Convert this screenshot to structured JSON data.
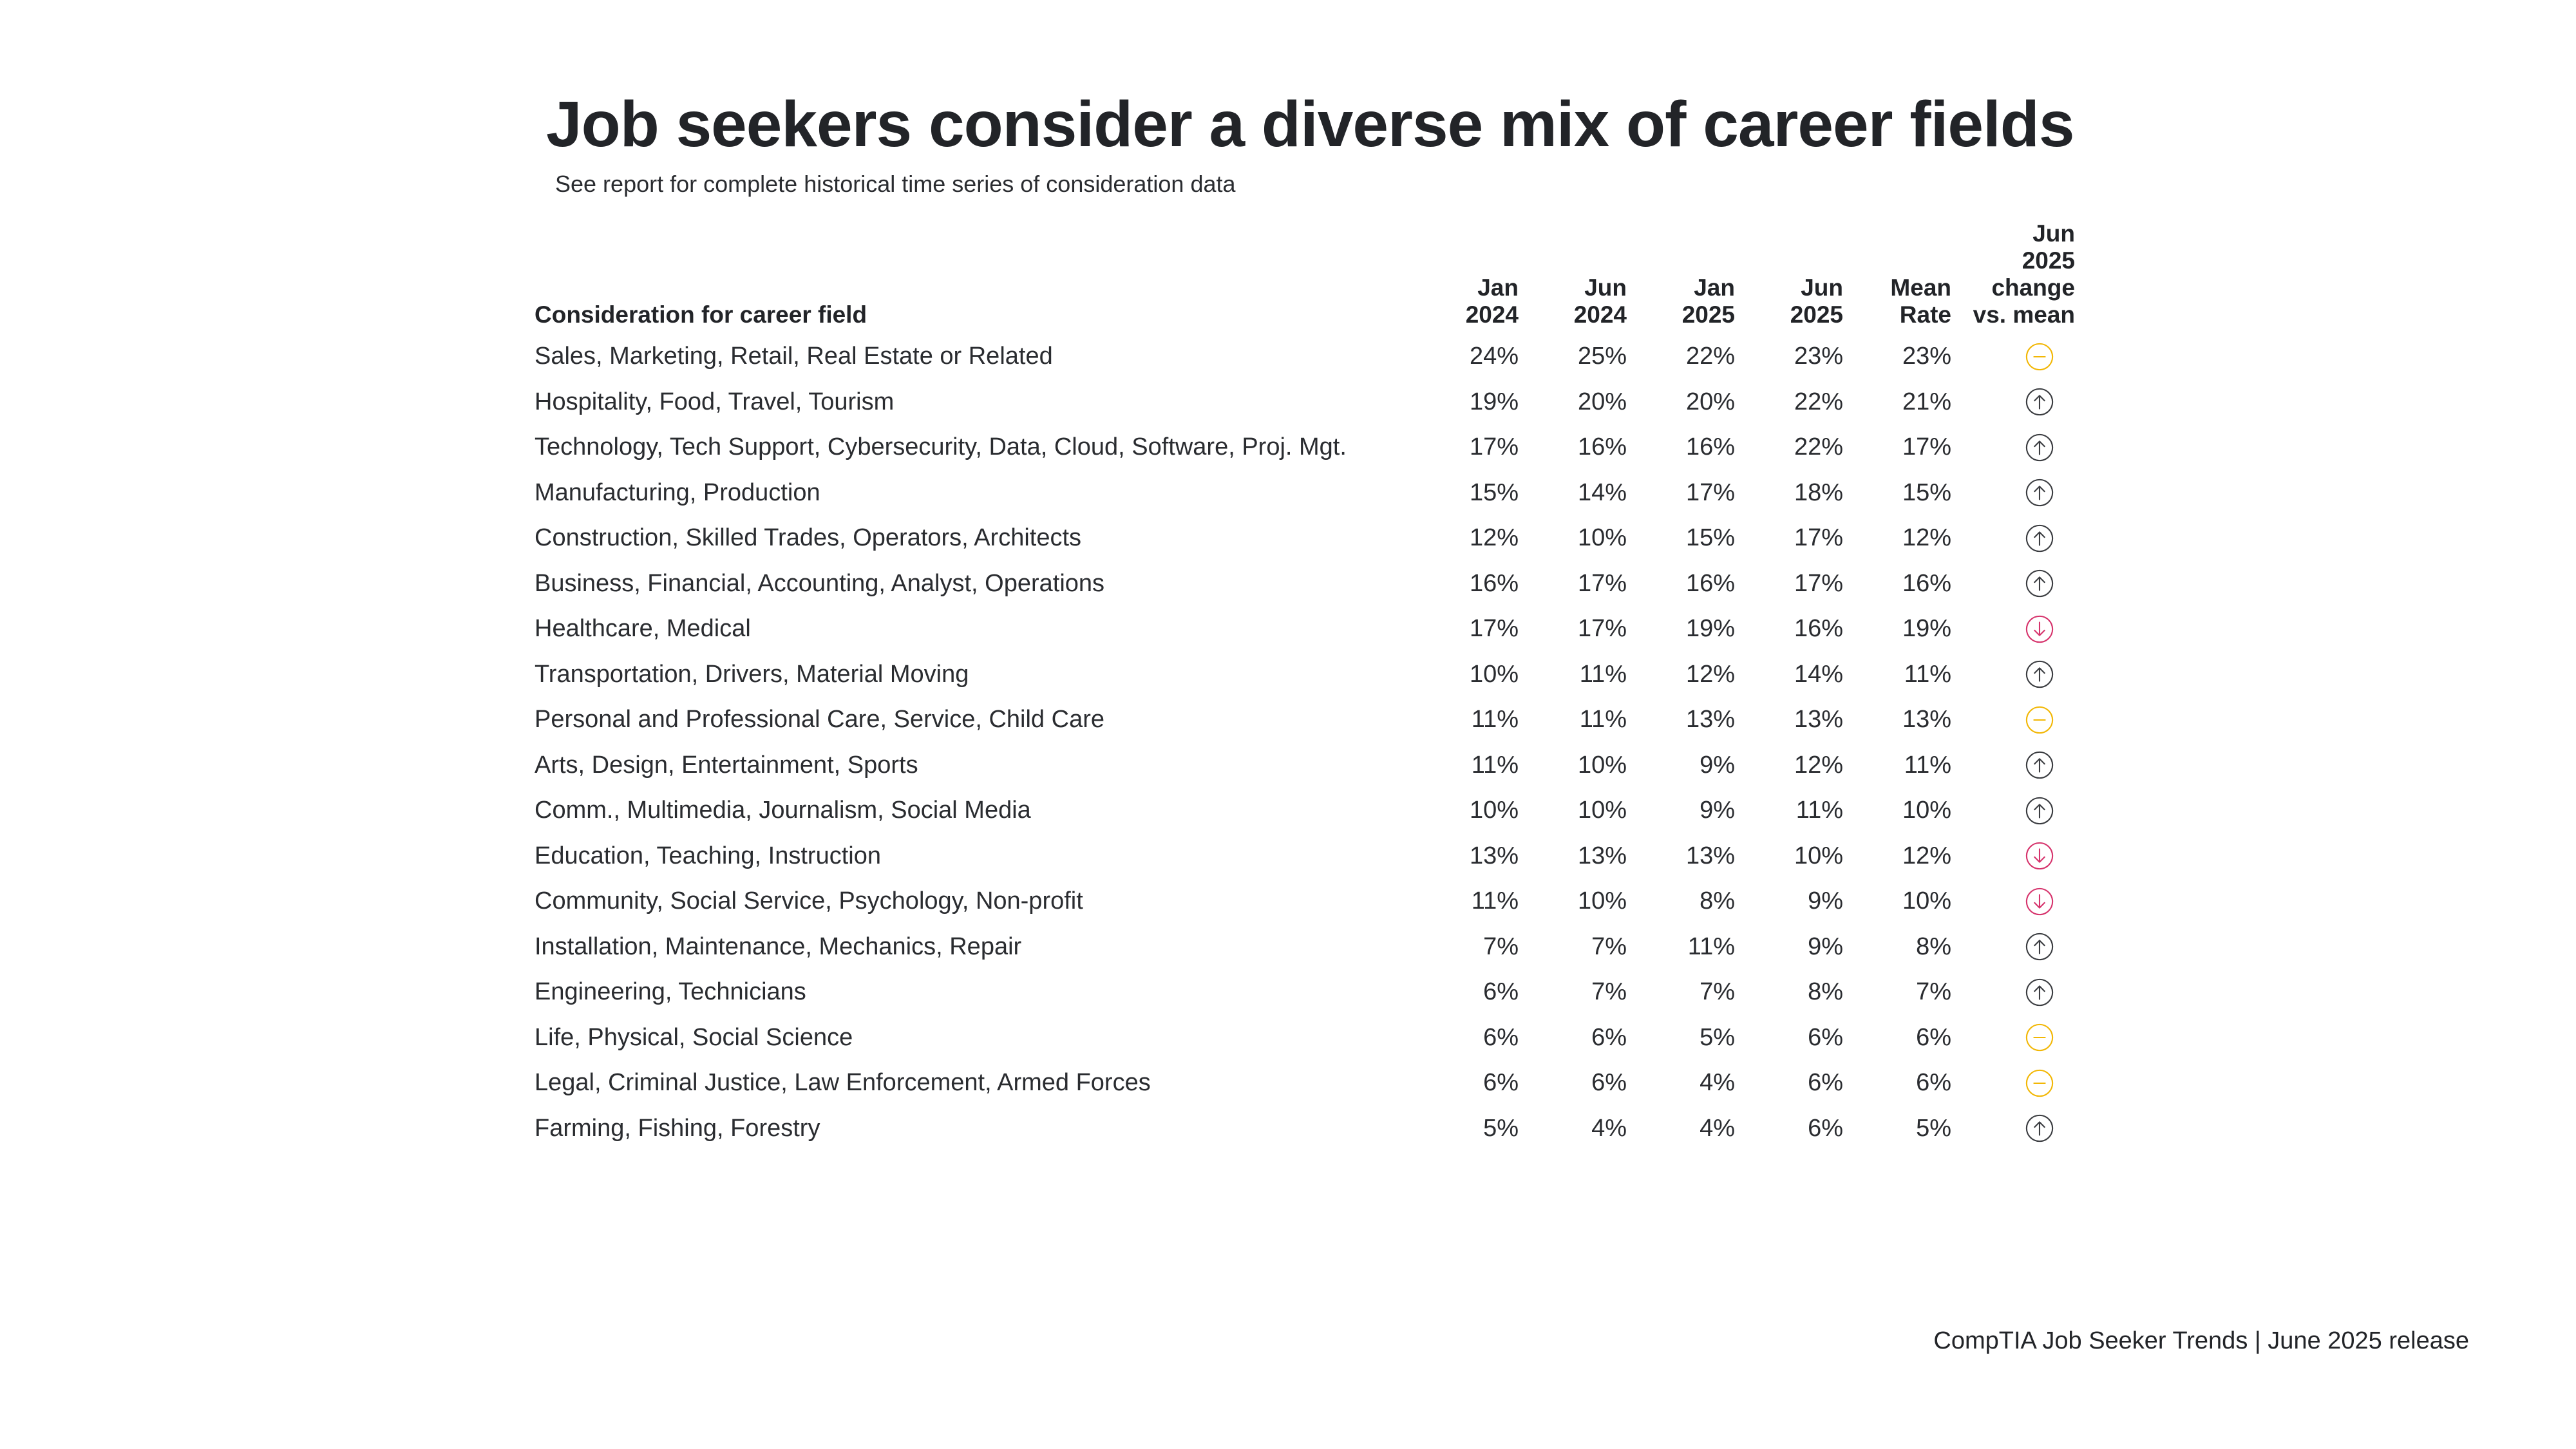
{
  "title": "Job seekers consider a diverse mix of career fields",
  "subtitle": "See report for complete historical time series of consideration data",
  "table": {
    "name_header": "Consideration for career field",
    "columns": [
      {
        "line1": "Jan",
        "line2": "2024"
      },
      {
        "line1": "Jun",
        "line2": "2024"
      },
      {
        "line1": "Jan",
        "line2": "2025"
      },
      {
        "line1": "Jun",
        "line2": "2025"
      },
      {
        "line1": "Mean",
        "line2": "Rate"
      }
    ],
    "change_header": [
      "Jun",
      "2025",
      "change",
      "vs. mean"
    ],
    "rows": [
      {
        "name": "Sales, Marketing, Retail, Real Estate or Related",
        "values": [
          "24%",
          "25%",
          "22%",
          "23%",
          "23%"
        ],
        "trend": "flat"
      },
      {
        "name": "Hospitality, Food, Travel, Tourism",
        "values": [
          "19%",
          "20%",
          "20%",
          "22%",
          "21%"
        ],
        "trend": "up"
      },
      {
        "name": "Technology, Tech Support, Cybersecurity, Data, Cloud, Software, Proj. Mgt.",
        "values": [
          "17%",
          "16%",
          "16%",
          "22%",
          "17%"
        ],
        "trend": "up"
      },
      {
        "name": "Manufacturing, Production",
        "values": [
          "15%",
          "14%",
          "17%",
          "18%",
          "15%"
        ],
        "trend": "up"
      },
      {
        "name": "Construction, Skilled Trades, Operators, Architects",
        "values": [
          "12%",
          "10%",
          "15%",
          "17%",
          "12%"
        ],
        "trend": "up"
      },
      {
        "name": "Business, Financial, Accounting, Analyst, Operations",
        "values": [
          "16%",
          "17%",
          "16%",
          "17%",
          "16%"
        ],
        "trend": "up"
      },
      {
        "name": "Healthcare, Medical",
        "values": [
          "17%",
          "17%",
          "19%",
          "16%",
          "19%"
        ],
        "trend": "down"
      },
      {
        "name": "Transportation, Drivers, Material Moving",
        "values": [
          "10%",
          "11%",
          "12%",
          "14%",
          "11%"
        ],
        "trend": "up"
      },
      {
        "name": "Personal and Professional Care, Service, Child Care",
        "values": [
          "11%",
          "11%",
          "13%",
          "13%",
          "13%"
        ],
        "trend": "flat"
      },
      {
        "name": "Arts, Design, Entertainment, Sports",
        "values": [
          "11%",
          "10%",
          "9%",
          "12%",
          "11%"
        ],
        "trend": "up"
      },
      {
        "name": "Comm., Multimedia, Journalism, Social Media",
        "values": [
          "10%",
          "10%",
          "9%",
          "11%",
          "10%"
        ],
        "trend": "up"
      },
      {
        "name": "Education, Teaching, Instruction",
        "values": [
          "13%",
          "13%",
          "13%",
          "10%",
          "12%"
        ],
        "trend": "down"
      },
      {
        "name": "Community, Social Service, Psychology, Non-profit",
        "values": [
          "11%",
          "10%",
          "8%",
          "9%",
          "10%"
        ],
        "trend": "down"
      },
      {
        "name": "Installation, Maintenance, Mechanics, Repair",
        "values": [
          "7%",
          "7%",
          "11%",
          "9%",
          "8%"
        ],
        "trend": "up"
      },
      {
        "name": "Engineering, Technicians",
        "values": [
          "6%",
          "7%",
          "7%",
          "8%",
          "7%"
        ],
        "trend": "up"
      },
      {
        "name": "Life, Physical, Social Science",
        "values": [
          "6%",
          "6%",
          "5%",
          "6%",
          "6%"
        ],
        "trend": "flat"
      },
      {
        "name": "Legal, Criminal Justice, Law Enforcement, Armed Forces",
        "values": [
          "6%",
          "6%",
          "4%",
          "6%",
          "6%"
        ],
        "trend": "flat"
      },
      {
        "name": "Farming, Fishing, Forestry",
        "values": [
          "5%",
          "4%",
          "4%",
          "6%",
          "5%"
        ],
        "trend": "up"
      }
    ]
  },
  "trend_icons": {
    "up": {
      "icon": "arrow-up-circle-icon",
      "color": "#3a3c40"
    },
    "down": {
      "icon": "arrow-down-circle-icon",
      "color": "#d6336c"
    },
    "flat": {
      "icon": "dash-circle-icon",
      "color": "#f2b705"
    }
  },
  "footer": "CompTIA Job Seeker Trends | June 2025 release"
}
